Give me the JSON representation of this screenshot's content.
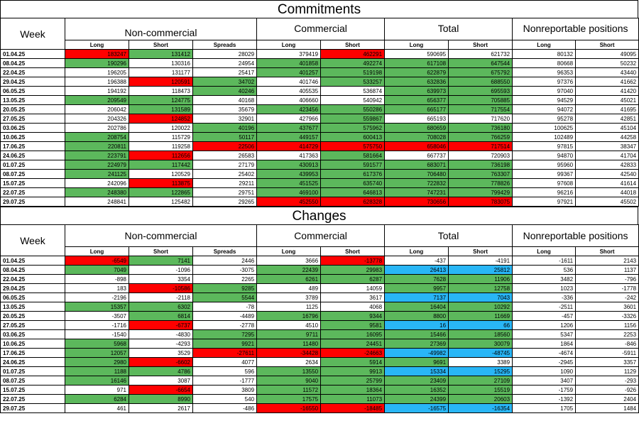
{
  "headers": {
    "week": "Week",
    "noncommercial": "Non-commercial",
    "commercial": "Commercial",
    "total": "Total",
    "nonreportable": "Nonreportable positions",
    "long": "Long",
    "short": "Short",
    "spreads": "Spreads"
  },
  "commitments": {
    "title": "Commitments",
    "rows": [
      {
        "week": "01.04.25",
        "nc_long": "183247",
        "nc_short": "131412",
        "nc_spreads": "28029",
        "c_long": "379419",
        "c_short": "462291",
        "t_long": "590695",
        "t_short": "621732",
        "nr_long": "80132",
        "nr_short": "49095"
      },
      {
        "week": "08.04.25",
        "nc_long": "190296",
        "nc_short": "130316",
        "nc_spreads": "24954",
        "c_long": "401858",
        "c_short": "492274",
        "t_long": "617108",
        "t_short": "647544",
        "nr_long": "80668",
        "nr_short": "50232"
      },
      {
        "week": "22.04.25",
        "nc_long": "196205",
        "nc_short": "131177",
        "nc_spreads": "25417",
        "c_long": "401257",
        "c_short": "519198",
        "t_long": "622879",
        "t_short": "675792",
        "nr_long": "96353",
        "nr_short": "43440"
      },
      {
        "week": "29.04.25",
        "nc_long": "196388",
        "nc_short": "120591",
        "nc_spreads": "34702",
        "c_long": "401746",
        "c_short": "533257",
        "t_long": "632836",
        "t_short": "688550",
        "nr_long": "97376",
        "nr_short": "41662"
      },
      {
        "week": "06.05.25",
        "nc_long": "194192",
        "nc_short": "118473",
        "nc_spreads": "40246",
        "c_long": "405535",
        "c_short": "536874",
        "t_long": "639973",
        "t_short": "695593",
        "nr_long": "97040",
        "nr_short": "41420"
      },
      {
        "week": "13.05.25",
        "nc_long": "209549",
        "nc_short": "124775",
        "nc_spreads": "40168",
        "c_long": "406660",
        "c_short": "540942",
        "t_long": "656377",
        "t_short": "705885",
        "nr_long": "94529",
        "nr_short": "45021"
      },
      {
        "week": "20.05.25",
        "nc_long": "206042",
        "nc_short": "131589",
        "nc_spreads": "35679",
        "c_long": "423456",
        "c_short": "550286",
        "t_long": "665177",
        "t_short": "717554",
        "nr_long": "94072",
        "nr_short": "41695"
      },
      {
        "week": "27.05.25",
        "nc_long": "204326",
        "nc_short": "124852",
        "nc_spreads": "32901",
        "c_long": "427966",
        "c_short": "559867",
        "t_long": "665193",
        "t_short": "717620",
        "nr_long": "95278",
        "nr_short": "42851"
      },
      {
        "week": "03.06.25",
        "nc_long": "202786",
        "nc_short": "120022",
        "nc_spreads": "40196",
        "c_long": "437677",
        "c_short": "575962",
        "t_long": "680659",
        "t_short": "736180",
        "nr_long": "100625",
        "nr_short": "45104"
      },
      {
        "week": "10.06.25",
        "nc_long": "208754",
        "nc_short": "115729",
        "nc_spreads": "50117",
        "c_long": "449157",
        "c_short": "600413",
        "t_long": "708028",
        "t_short": "766259",
        "nr_long": "102489",
        "nr_short": "44258"
      },
      {
        "week": "17.06.25",
        "nc_long": "220811",
        "nc_short": "119258",
        "nc_spreads": "22506",
        "c_long": "414729",
        "c_short": "575750",
        "t_long": "658046",
        "t_short": "717514",
        "nr_long": "97815",
        "nr_short": "38347"
      },
      {
        "week": "24.06.25",
        "nc_long": "223791",
        "nc_short": "112656",
        "nc_spreads": "26583",
        "c_long": "417363",
        "c_short": "581664",
        "t_long": "667737",
        "t_short": "720903",
        "nr_long": "94870",
        "nr_short": "41704"
      },
      {
        "week": "01.07.25",
        "nc_long": "224979",
        "nc_short": "117442",
        "nc_spreads": "27179",
        "c_long": "430913",
        "c_short": "591577",
        "t_long": "683071",
        "t_short": "736198",
        "nr_long": "95960",
        "nr_short": "42833"
      },
      {
        "week": "08.07.25",
        "nc_long": "241125",
        "nc_short": "120529",
        "nc_spreads": "25402",
        "c_long": "439953",
        "c_short": "617376",
        "t_long": "706480",
        "t_short": "763307",
        "nr_long": "99367",
        "nr_short": "42540"
      },
      {
        "week": "15.07.25",
        "nc_long": "242096",
        "nc_short": "113875",
        "nc_spreads": "29211",
        "c_long": "451525",
        "c_short": "635740",
        "t_long": "722832",
        "t_short": "778826",
        "nr_long": "97608",
        "nr_short": "41614"
      },
      {
        "week": "22.07.25",
        "nc_long": "248380",
        "nc_short": "122865",
        "nc_spreads": "29751",
        "c_long": "469100",
        "c_short": "646813",
        "t_long": "747231",
        "t_short": "799429",
        "nr_long": "96216",
        "nr_short": "44018"
      },
      {
        "week": "29.07.25",
        "nc_long": "248841",
        "nc_short": "125482",
        "nc_spreads": "29265",
        "c_long": "452550",
        "c_short": "628328",
        "t_long": "730656",
        "t_short": "783075",
        "nr_long": "97921",
        "nr_short": "45502"
      }
    ]
  },
  "changes": {
    "title": "Changes",
    "rows": [
      {
        "week": "01.04.25",
        "nc_long": "-6549",
        "nc_short": "7141",
        "nc_spreads": "2446",
        "c_long": "3666",
        "c_short": "-13778",
        "t_long": "-437",
        "t_short": "-4191",
        "nr_long": "-1611",
        "nr_short": "2143"
      },
      {
        "week": "08.04.25",
        "nc_long": "7049",
        "nc_short": "-1096",
        "nc_spreads": "-3075",
        "c_long": "22439",
        "c_short": "29983",
        "t_long": "26413",
        "t_short": "25812",
        "nr_long": "536",
        "nr_short": "1137"
      },
      {
        "week": "22.04.25",
        "nc_long": "-898",
        "nc_short": "3354",
        "nc_spreads": "2265",
        "c_long": "6261",
        "c_short": "6287",
        "t_long": "7628",
        "t_short": "11906",
        "nr_long": "3482",
        "nr_short": "-796"
      },
      {
        "week": "29.04.25",
        "nc_long": "183",
        "nc_short": "-10586",
        "nc_spreads": "9285",
        "c_long": "489",
        "c_short": "14059",
        "t_long": "9957",
        "t_short": "12758",
        "nr_long": "1023",
        "nr_short": "-1778"
      },
      {
        "week": "06.05.25",
        "nc_long": "-2196",
        "nc_short": "-2118",
        "nc_spreads": "5544",
        "c_long": "3789",
        "c_short": "3617",
        "t_long": "7137",
        "t_short": "7043",
        "nr_long": "-336",
        "nr_short": "-242"
      },
      {
        "week": "13.05.25",
        "nc_long": "15357",
        "nc_short": "6302",
        "nc_spreads": "-78",
        "c_long": "1125",
        "c_short": "4068",
        "t_long": "16404",
        "t_short": "10292",
        "nr_long": "-2511",
        "nr_short": "3601"
      },
      {
        "week": "20.05.25",
        "nc_long": "-3507",
        "nc_short": "6814",
        "nc_spreads": "-4489",
        "c_long": "16796",
        "c_short": "9344",
        "t_long": "8800",
        "t_short": "11669",
        "nr_long": "-457",
        "nr_short": "-3326"
      },
      {
        "week": "27.05.25",
        "nc_long": "-1716",
        "nc_short": "-6737",
        "nc_spreads": "-2778",
        "c_long": "4510",
        "c_short": "9581",
        "t_long": "16",
        "t_short": "66",
        "nr_long": "1206",
        "nr_short": "1156"
      },
      {
        "week": "03.06.25",
        "nc_long": "-1540",
        "nc_short": "-4830",
        "nc_spreads": "7295",
        "c_long": "9711",
        "c_short": "16095",
        "t_long": "15466",
        "t_short": "18560",
        "nr_long": "5347",
        "nr_short": "2253"
      },
      {
        "week": "10.06.25",
        "nc_long": "5968",
        "nc_short": "-4293",
        "nc_spreads": "9921",
        "c_long": "11480",
        "c_short": "24451",
        "t_long": "27369",
        "t_short": "30079",
        "nr_long": "1864",
        "nr_short": "-846"
      },
      {
        "week": "17.06.25",
        "nc_long": "12057",
        "nc_short": "3529",
        "nc_spreads": "-27611",
        "c_long": "-34428",
        "c_short": "-24663",
        "t_long": "-49982",
        "t_short": "-48745",
        "nr_long": "-4674",
        "nr_short": "-5911"
      },
      {
        "week": "24.06.25",
        "nc_long": "2980",
        "nc_short": "-6602",
        "nc_spreads": "4077",
        "c_long": "2634",
        "c_short": "5914",
        "t_long": "9691",
        "t_short": "3389",
        "nr_long": "-2945",
        "nr_short": "3357"
      },
      {
        "week": "01.07.25",
        "nc_long": "1188",
        "nc_short": "4786",
        "nc_spreads": "596",
        "c_long": "13550",
        "c_short": "9913",
        "t_long": "15334",
        "t_short": "15295",
        "nr_long": "1090",
        "nr_short": "1129"
      },
      {
        "week": "08.07.25",
        "nc_long": "16146",
        "nc_short": "3087",
        "nc_spreads": "-1777",
        "c_long": "9040",
        "c_short": "25799",
        "t_long": "23409",
        "t_short": "27109",
        "nr_long": "3407",
        "nr_short": "-293"
      },
      {
        "week": "15.07.25",
        "nc_long": "971",
        "nc_short": "-6654",
        "nc_spreads": "3809",
        "c_long": "11572",
        "c_short": "18364",
        "t_long": "16352",
        "t_short": "15519",
        "nr_long": "-1759",
        "nr_short": "-926"
      },
      {
        "week": "22.07.25",
        "nc_long": "6284",
        "nc_short": "8990",
        "nc_spreads": "540",
        "c_long": "17575",
        "c_short": "11073",
        "t_long": "24399",
        "t_short": "20603",
        "nr_long": "-1392",
        "nr_short": "2404"
      },
      {
        "week": "29.07.25",
        "nc_long": "461",
        "nc_short": "2617",
        "nc_spreads": "-486",
        "c_long": "-16550",
        "c_short": "-18485",
        "t_long": "-16575",
        "t_short": "-16354",
        "nr_long": "1705",
        "nr_short": "1484"
      }
    ]
  },
  "highlights": {
    "colors": {
      "green": "#5cb85c",
      "red": "#ff0000",
      "blue": "#29b6f6"
    },
    "commitments": [
      {
        "nc_long": "red",
        "nc_short": "green",
        "c_short": "red"
      },
      {
        "nc_long": "green",
        "c_long": "green",
        "c_short": "green",
        "t_long": "green",
        "t_short": "green"
      },
      {
        "c_long": "green",
        "c_short": "green",
        "t_long": "green",
        "t_short": "green"
      },
      {
        "nc_short": "red",
        "nc_spreads": "green",
        "c_short": "green",
        "t_long": "green",
        "t_short": "green"
      },
      {
        "nc_spreads": "green",
        "t_long": "green",
        "t_short": "green"
      },
      {
        "nc_long": "green",
        "nc_short": "green",
        "t_long": "green",
        "t_short": "green"
      },
      {
        "nc_short": "green",
        "c_long": "green",
        "c_short": "green",
        "t_long": "green",
        "t_short": "green"
      },
      {
        "nc_short": "red",
        "c_short": "green"
      },
      {
        "nc_spreads": "green",
        "c_long": "green",
        "c_short": "green",
        "t_long": "green",
        "t_short": "green"
      },
      {
        "nc_long": "green",
        "nc_spreads": "green",
        "c_long": "green",
        "c_short": "green",
        "t_long": "green",
        "t_short": "green"
      },
      {
        "nc_long": "green",
        "nc_spreads": "red",
        "c_long": "red",
        "c_short": "red",
        "t_long": "red",
        "t_short": "red"
      },
      {
        "nc_long": "green",
        "nc_short": "red",
        "c_short": "green"
      },
      {
        "nc_long": "green",
        "nc_short": "green",
        "c_long": "green",
        "c_short": "green",
        "t_long": "green",
        "t_short": "green"
      },
      {
        "nc_long": "green",
        "c_long": "green",
        "c_short": "green",
        "t_long": "green",
        "t_short": "green"
      },
      {
        "nc_short": "red",
        "c_long": "green",
        "c_short": "green",
        "t_long": "green",
        "t_short": "green"
      },
      {
        "nc_long": "green",
        "nc_short": "green",
        "c_long": "green",
        "c_short": "green",
        "t_long": "green",
        "t_short": "green"
      },
      {
        "c_long": "red",
        "c_short": "red",
        "t_long": "red",
        "t_short": "red"
      }
    ],
    "changes": [
      {
        "nc_long": "red",
        "nc_short": "green",
        "c_short": "red"
      },
      {
        "nc_long": "green",
        "c_long": "green",
        "c_short": "green",
        "t_long": "blue",
        "t_short": "blue"
      },
      {
        "c_long": "green",
        "c_short": "green",
        "t_long": "green",
        "t_short": "green"
      },
      {
        "nc_short": "red",
        "nc_spreads": "green",
        "t_long": "green",
        "t_short": "green"
      },
      {
        "nc_spreads": "green",
        "t_long": "blue",
        "t_short": "blue"
      },
      {
        "nc_long": "green",
        "nc_short": "green",
        "t_long": "green",
        "t_short": "green"
      },
      {
        "nc_short": "green",
        "c_long": "green",
        "c_short": "green",
        "t_long": "green",
        "t_short": "green"
      },
      {
        "nc_short": "red",
        "c_short": "green",
        "t_long": "blue",
        "t_short": "blue"
      },
      {
        "nc_spreads": "green",
        "c_long": "green",
        "c_short": "green",
        "t_long": "green",
        "t_short": "green"
      },
      {
        "nc_long": "green",
        "nc_spreads": "green",
        "c_long": "green",
        "c_short": "green",
        "t_long": "green",
        "t_short": "green"
      },
      {
        "nc_long": "green",
        "nc_spreads": "red",
        "c_long": "red",
        "c_short": "red",
        "t_long": "blue",
        "t_short": "blue"
      },
      {
        "nc_long": "green",
        "nc_short": "red",
        "c_short": "green",
        "t_long": "green"
      },
      {
        "nc_long": "green",
        "nc_short": "green",
        "c_long": "green",
        "c_short": "green",
        "t_long": "blue",
        "t_short": "blue"
      },
      {
        "nc_long": "green",
        "c_long": "green",
        "c_short": "green",
        "t_long": "green",
        "t_short": "green"
      },
      {
        "nc_short": "red",
        "c_long": "green",
        "c_short": "green",
        "t_long": "green",
        "t_short": "green"
      },
      {
        "nc_long": "green",
        "nc_short": "green",
        "c_long": "green",
        "c_short": "green",
        "t_long": "green",
        "t_short": "green"
      },
      {
        "c_long": "red",
        "c_short": "red",
        "t_long": "blue",
        "t_short": "blue"
      }
    ]
  }
}
